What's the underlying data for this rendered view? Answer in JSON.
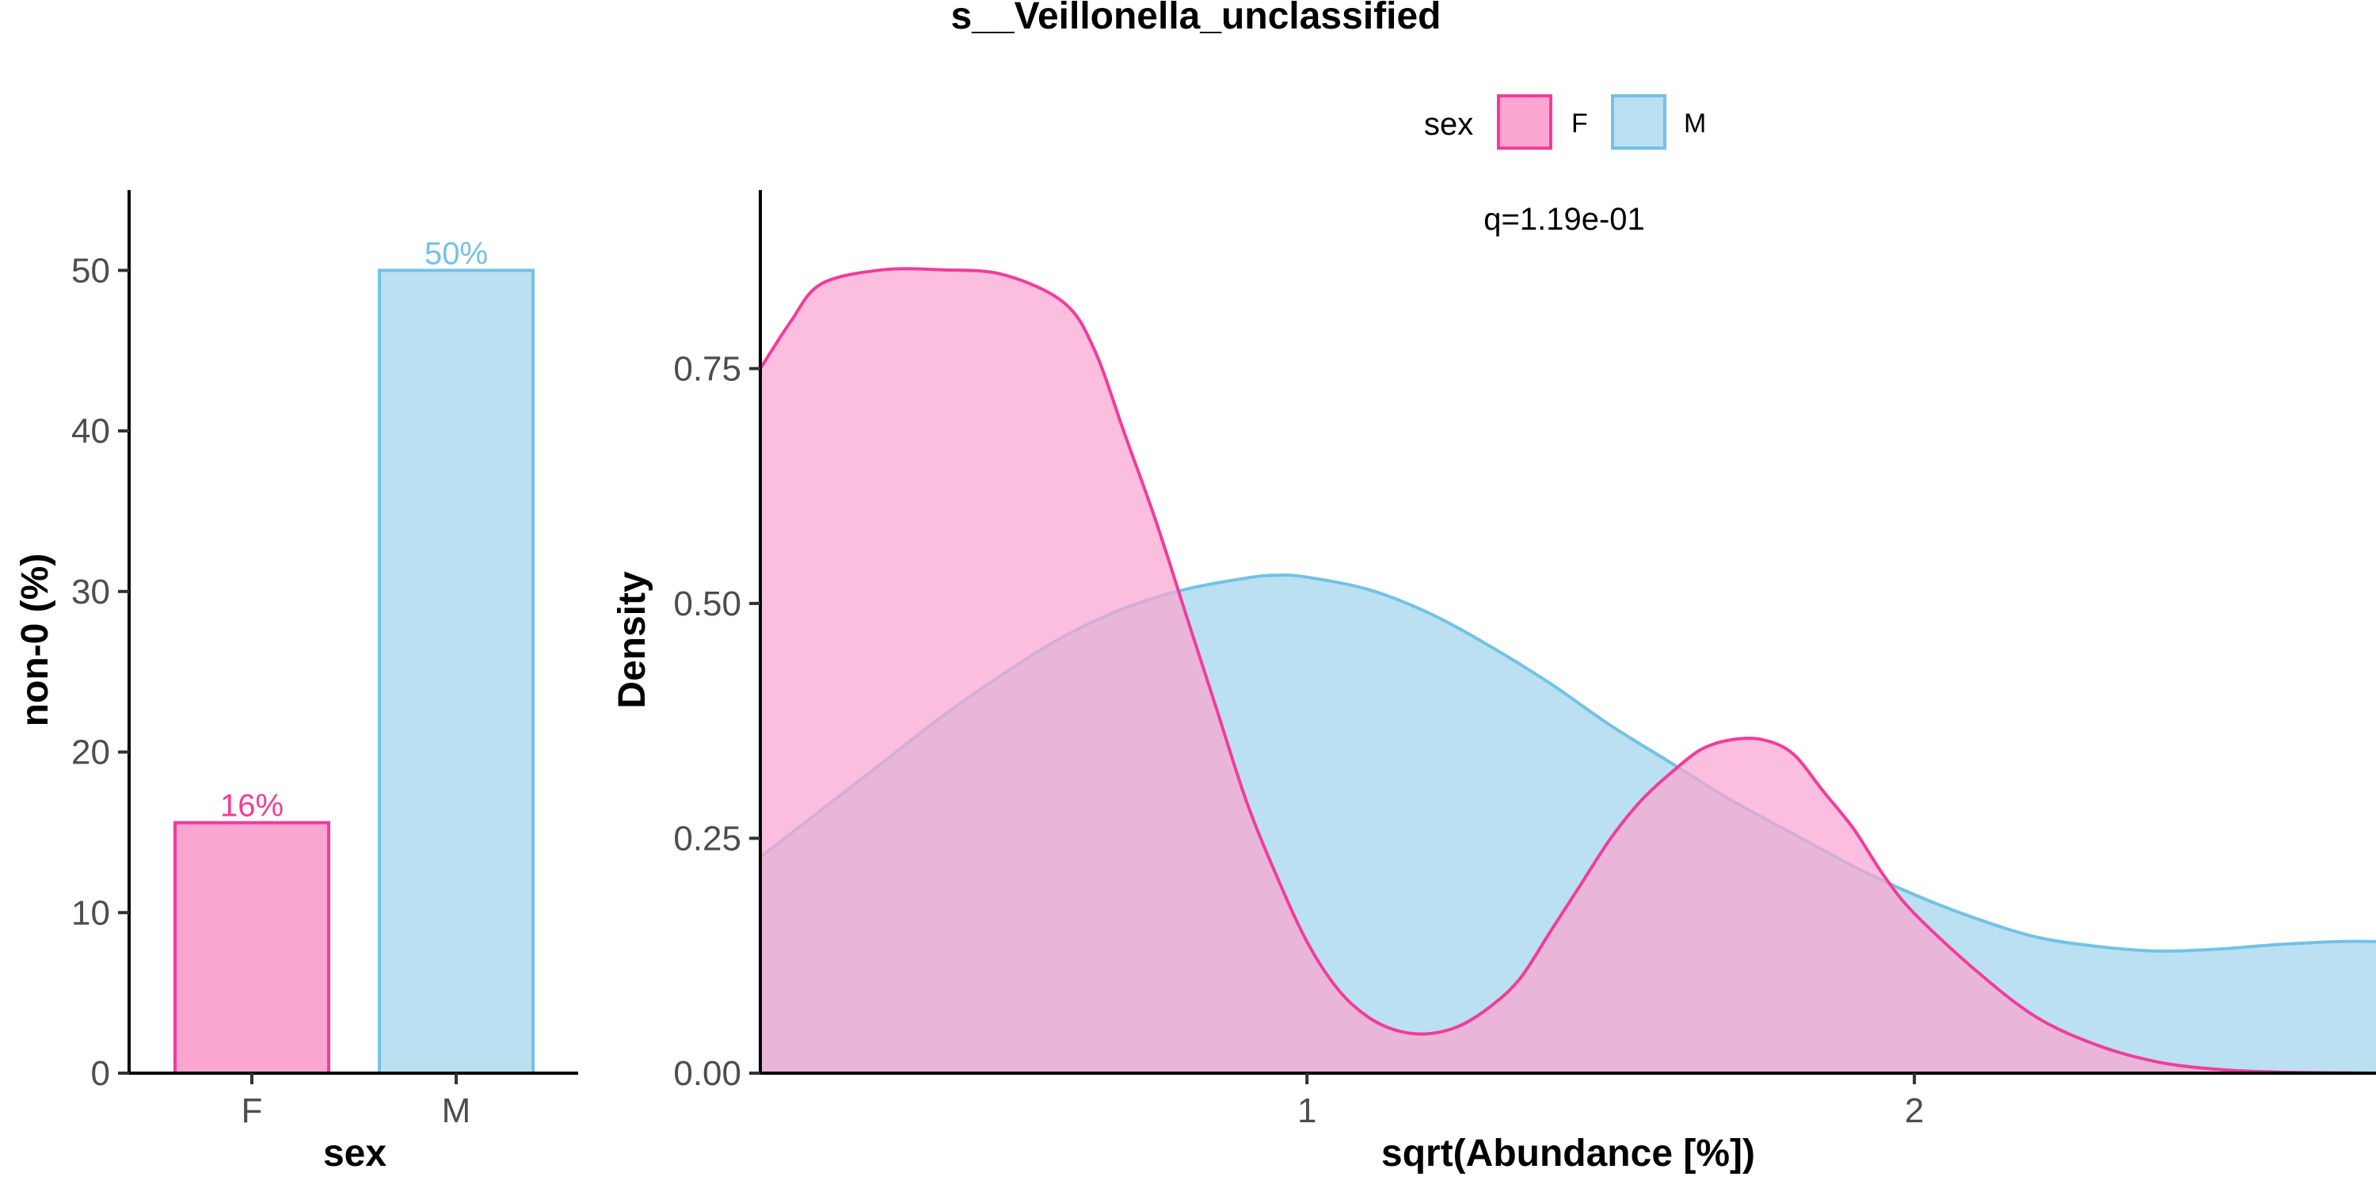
{
  "title": "s__Veillonella_unclassified",
  "colors": {
    "F_fill": "#FBA5D1",
    "F_line": "#F23C9B",
    "M_fill": "#BAE0F1",
    "M_line": "#73C2E5"
  },
  "legend": {
    "title": "sex",
    "items": [
      {
        "key": "F",
        "label": "F"
      },
      {
        "key": "M",
        "label": "M"
      }
    ]
  },
  "chart_data": [
    {
      "type": "bar",
      "xlabel": "sex",
      "ylabel": "non-0 (%)",
      "categories": [
        "F",
        "M"
      ],
      "values": [
        15.6,
        50.0
      ],
      "data_labels": [
        "16%",
        "50%"
      ],
      "ylim": [
        0,
        55
      ],
      "yticks": [
        0,
        10,
        20,
        30,
        40,
        50
      ],
      "grid": false
    },
    {
      "type": "area",
      "xlabel": "sqrt(Abundance [%])",
      "ylabel": "Density",
      "annotation": "q=1.19e-01",
      "xlim": [
        0.1,
        2.76
      ],
      "ylim": [
        0,
        0.94
      ],
      "xticks": [
        1,
        2
      ],
      "yticks": [
        0,
        0.25,
        0.5,
        0.75
      ],
      "ytick_labels": [
        "0.00",
        "0.25",
        "0.50",
        "0.75"
      ],
      "grid": false,
      "series": [
        {
          "name": "F",
          "x": [
            0.1,
            0.15,
            0.2,
            0.3,
            0.4,
            0.5,
            0.6,
            0.65,
            0.7,
            0.75,
            0.8,
            0.85,
            0.9,
            0.95,
            1.0,
            1.05,
            1.1,
            1.15,
            1.2,
            1.25,
            1.3,
            1.35,
            1.4,
            1.45,
            1.5,
            1.55,
            1.6,
            1.65,
            1.7,
            1.75,
            1.8,
            1.85,
            1.9,
            1.95,
            2.0,
            2.1,
            2.2,
            2.3,
            2.4,
            2.5,
            2.6,
            2.76
          ],
          "y": [
            0.75,
            0.8,
            0.84,
            0.855,
            0.855,
            0.85,
            0.82,
            0.77,
            0.68,
            0.59,
            0.49,
            0.39,
            0.29,
            0.21,
            0.14,
            0.09,
            0.06,
            0.045,
            0.042,
            0.05,
            0.07,
            0.1,
            0.15,
            0.2,
            0.25,
            0.29,
            0.32,
            0.345,
            0.355,
            0.355,
            0.34,
            0.3,
            0.26,
            0.21,
            0.17,
            0.11,
            0.06,
            0.03,
            0.012,
            0.004,
            0.001,
            0.0
          ]
        },
        {
          "name": "M",
          "x": [
            0.1,
            0.2,
            0.3,
            0.4,
            0.5,
            0.6,
            0.7,
            0.8,
            0.9,
            0.95,
            1.0,
            1.1,
            1.2,
            1.3,
            1.4,
            1.5,
            1.6,
            1.7,
            1.8,
            1.9,
            2.0,
            2.1,
            2.2,
            2.3,
            2.4,
            2.5,
            2.6,
            2.7,
            2.76
          ],
          "y": [
            0.23,
            0.28,
            0.33,
            0.38,
            0.425,
            0.465,
            0.495,
            0.515,
            0.527,
            0.53,
            0.528,
            0.515,
            0.49,
            0.455,
            0.415,
            0.37,
            0.33,
            0.29,
            0.255,
            0.22,
            0.19,
            0.165,
            0.145,
            0.135,
            0.13,
            0.132,
            0.137,
            0.14,
            0.14
          ]
        }
      ]
    }
  ]
}
